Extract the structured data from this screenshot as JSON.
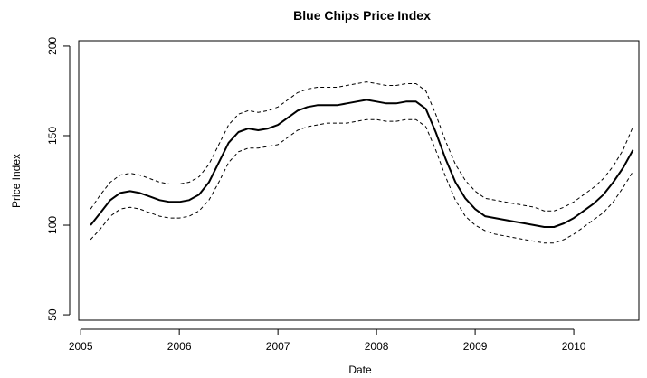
{
  "chart_data": {
    "type": "line",
    "title": "Blue Chips Price Index",
    "xlabel": "Date",
    "ylabel": "Price Index",
    "xlim": [
      2004.98,
      2010.66
    ],
    "ylim": [
      47,
      203
    ],
    "x_ticks": [
      2005,
      2006,
      2007,
      2008,
      2009,
      2010
    ],
    "y_ticks": [
      50,
      100,
      150,
      200
    ],
    "grid": false,
    "legend": "none",
    "series": [
      {
        "style": "solid",
        "color": "#000000",
        "x": [
          2005.1,
          2005.2,
          2005.3,
          2005.4,
          2005.5,
          2005.6,
          2005.7,
          2005.8,
          2005.9,
          2006.0,
          2006.1,
          2006.2,
          2006.3,
          2006.4,
          2006.5,
          2006.6,
          2006.7,
          2006.8,
          2006.9,
          2007.0,
          2007.1,
          2007.2,
          2007.3,
          2007.4,
          2007.5,
          2007.6,
          2007.7,
          2007.8,
          2007.9,
          2008.0,
          2008.1,
          2008.2,
          2008.3,
          2008.4,
          2008.5,
          2008.6,
          2008.7,
          2008.8,
          2008.9,
          2009.0,
          2009.1,
          2009.2,
          2009.3,
          2009.4,
          2009.5,
          2009.6,
          2009.7,
          2009.8,
          2009.9,
          2010.0,
          2010.1,
          2010.2,
          2010.3,
          2010.4,
          2010.5,
          2010.6
        ],
        "y": [
          100,
          107,
          114,
          118,
          119,
          118,
          116,
          114,
          113,
          113,
          114,
          117,
          124,
          135,
          146,
          152,
          154,
          153,
          154,
          156,
          160,
          164,
          166,
          167,
          167,
          167,
          168,
          169,
          170,
          169,
          168,
          168,
          169,
          169,
          165,
          152,
          137,
          124,
          115,
          109,
          105,
          104,
          103,
          102,
          101,
          100,
          99,
          99,
          101,
          104,
          108,
          112,
          117,
          124,
          132,
          142
        ]
      },
      {
        "style": "dashed",
        "color": "#000000",
        "x": [
          2005.1,
          2005.2,
          2005.3,
          2005.4,
          2005.5,
          2005.6,
          2005.7,
          2005.8,
          2005.9,
          2006.0,
          2006.1,
          2006.2,
          2006.3,
          2006.4,
          2006.5,
          2006.6,
          2006.7,
          2006.8,
          2006.9,
          2007.0,
          2007.1,
          2007.2,
          2007.3,
          2007.4,
          2007.5,
          2007.6,
          2007.7,
          2007.8,
          2007.9,
          2008.0,
          2008.1,
          2008.2,
          2008.3,
          2008.4,
          2008.5,
          2008.6,
          2008.7,
          2008.8,
          2008.9,
          2009.0,
          2009.1,
          2009.2,
          2009.3,
          2009.4,
          2009.5,
          2009.6,
          2009.7,
          2009.8,
          2009.9,
          2010.0,
          2010.1,
          2010.2,
          2010.3,
          2010.4,
          2010.5,
          2010.6
        ],
        "y": [
          109,
          117,
          124,
          128,
          129,
          128,
          126,
          124,
          123,
          123,
          124,
          127,
          134,
          145,
          156,
          162,
          164,
          163,
          164,
          166,
          170,
          174,
          176,
          177,
          177,
          177,
          178,
          179,
          180,
          179,
          178,
          178,
          179,
          179,
          175,
          162,
          147,
          134,
          125,
          119,
          115,
          114,
          113,
          112,
          111,
          110,
          108,
          108,
          110,
          113,
          117,
          121,
          126,
          133,
          142,
          155
        ]
      },
      {
        "style": "dashed",
        "color": "#000000",
        "x": [
          2005.1,
          2005.2,
          2005.3,
          2005.4,
          2005.5,
          2005.6,
          2005.7,
          2005.8,
          2005.9,
          2006.0,
          2006.1,
          2006.2,
          2006.3,
          2006.4,
          2006.5,
          2006.6,
          2006.7,
          2006.8,
          2006.9,
          2007.0,
          2007.1,
          2007.2,
          2007.3,
          2007.4,
          2007.5,
          2007.6,
          2007.7,
          2007.8,
          2007.9,
          2008.0,
          2008.1,
          2008.2,
          2008.3,
          2008.4,
          2008.5,
          2008.6,
          2008.7,
          2008.8,
          2008.9,
          2009.0,
          2009.1,
          2009.2,
          2009.3,
          2009.4,
          2009.5,
          2009.6,
          2009.7,
          2009.8,
          2009.9,
          2010.0,
          2010.1,
          2010.2,
          2010.3,
          2010.4,
          2010.5,
          2010.6
        ],
        "y": [
          92,
          98,
          105,
          109,
          110,
          109,
          107,
          105,
          104,
          104,
          105,
          108,
          114,
          124,
          135,
          141,
          143,
          143,
          144,
          145,
          149,
          153,
          155,
          156,
          157,
          157,
          157,
          158,
          159,
          159,
          158,
          158,
          159,
          159,
          155,
          142,
          127,
          114,
          105,
          100,
          97,
          95,
          94,
          93,
          92,
          91,
          90,
          90,
          92,
          95,
          99,
          103,
          107,
          113,
          121,
          130
        ]
      }
    ]
  }
}
